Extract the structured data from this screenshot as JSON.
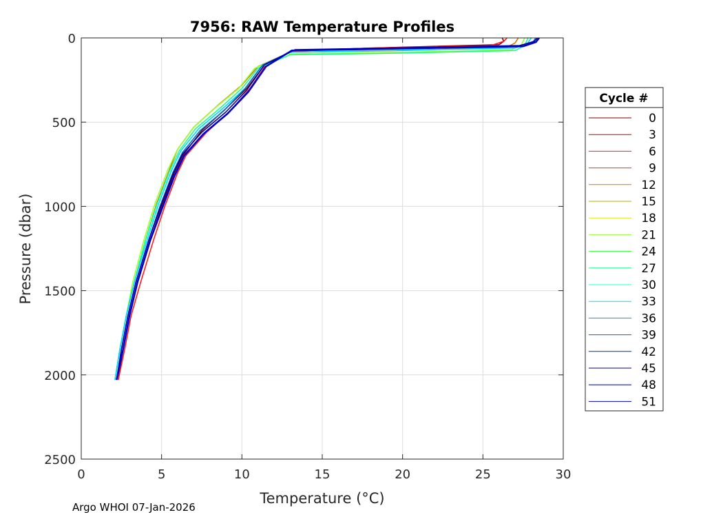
{
  "chart_data": {
    "type": "line",
    "title": "7956: RAW Temperature Profiles",
    "xlabel": "Temperature (°C)",
    "ylabel": "Pressure (dbar)",
    "xlim": [
      0,
      30
    ],
    "ylim": [
      0,
      2500
    ],
    "y_reversed": true,
    "grid": true,
    "xticks": [
      "0",
      "5",
      "10",
      "15",
      "20",
      "25",
      "30"
    ],
    "yticks": [
      "0",
      "500",
      "1000",
      "1500",
      "2000",
      "2500"
    ],
    "legend_title": "Cycle #",
    "legend_position": "right",
    "legend": [
      "0",
      "3",
      "6",
      "9",
      "12",
      "15",
      "18",
      "21",
      "24",
      "27",
      "30",
      "33",
      "36",
      "39",
      "42",
      "45",
      "48",
      "51"
    ],
    "legend_colors": [
      "#800000",
      "#cc0000",
      "#ff1a1a",
      "#e63900",
      "#cc7a00",
      "#b3b300",
      "#e6e600",
      "#99ff33",
      "#33ff33",
      "#1aff8c",
      "#1affcc",
      "#00d9ff",
      "#0099e6",
      "#0066cc",
      "#0033b3",
      "#000099",
      "#000080",
      "#0000cc"
    ],
    "series": [
      {
        "name": "0",
        "temperature": [
          26.2,
          26.3,
          26.0,
          20.0,
          13.2,
          11.5,
          10.3,
          9.0,
          7.5,
          6.3,
          5.8,
          5.0,
          4.3,
          3.5,
          3.0,
          2.6,
          2.3
        ],
        "pressure": [
          0,
          20,
          40,
          55,
          75,
          150,
          300,
          420,
          550,
          700,
          800,
          1000,
          1200,
          1450,
          1650,
          1850,
          2030
        ]
      },
      {
        "name": "6",
        "temperature": [
          26.5,
          26.3,
          25.5,
          18.0,
          13.0,
          11.5,
          10.5,
          9.3,
          7.8,
          6.5,
          6.0,
          5.2,
          4.5,
          3.7,
          3.1,
          2.7,
          2.3
        ],
        "pressure": [
          0,
          20,
          45,
          60,
          80,
          160,
          300,
          430,
          560,
          700,
          800,
          1000,
          1200,
          1450,
          1650,
          1850,
          2030
        ]
      },
      {
        "name": "12",
        "temperature": [
          27.2,
          27.0,
          26.5,
          20.0,
          13.0,
          11.0,
          10.0,
          8.5,
          7.0,
          6.0,
          5.5,
          4.7,
          4.0,
          3.3,
          2.8,
          2.4,
          2.1
        ],
        "pressure": [
          0,
          30,
          55,
          75,
          85,
          170,
          280,
          400,
          530,
          660,
          780,
          980,
          1200,
          1450,
          1650,
          1850,
          2030
        ]
      },
      {
        "name": "21",
        "temperature": [
          27.6,
          27.4,
          26.8,
          20.0,
          12.8,
          10.8,
          9.8,
          8.4,
          7.0,
          6.0,
          5.4,
          4.6,
          3.9,
          3.2,
          2.8,
          2.4,
          2.1
        ],
        "pressure": [
          0,
          40,
          70,
          85,
          95,
          180,
          300,
          410,
          530,
          660,
          780,
          980,
          1200,
          1450,
          1650,
          1850,
          2030
        ]
      },
      {
        "name": "27",
        "temperature": [
          27.8,
          27.6,
          27.0,
          20.0,
          13.0,
          11.0,
          10.0,
          8.6,
          7.1,
          6.1,
          5.5,
          4.7,
          4.0,
          3.3,
          2.8,
          2.4,
          2.1
        ],
        "pressure": [
          0,
          45,
          75,
          90,
          100,
          180,
          300,
          420,
          540,
          670,
          790,
          990,
          1200,
          1450,
          1650,
          1850,
          2030
        ]
      },
      {
        "name": "33",
        "temperature": [
          28.0,
          27.8,
          27.0,
          19.0,
          13.0,
          11.2,
          10.2,
          8.8,
          7.3,
          6.2,
          5.6,
          4.8,
          4.1,
          3.3,
          2.8,
          2.4,
          2.1
        ],
        "pressure": [
          0,
          30,
          60,
          75,
          85,
          170,
          300,
          420,
          540,
          670,
          790,
          990,
          1200,
          1450,
          1650,
          1850,
          2030
        ]
      },
      {
        "name": "39",
        "temperature": [
          28.3,
          28.1,
          27.2,
          19.0,
          13.2,
          11.3,
          10.2,
          8.9,
          7.4,
          6.3,
          5.7,
          4.9,
          4.2,
          3.4,
          2.9,
          2.5,
          2.2
        ],
        "pressure": [
          0,
          25,
          50,
          65,
          75,
          160,
          300,
          430,
          550,
          680,
          800,
          1000,
          1200,
          1450,
          1650,
          1850,
          2030
        ]
      },
      {
        "name": "45",
        "temperature": [
          28.4,
          28.2,
          27.3,
          19.0,
          13.3,
          11.4,
          10.3,
          9.0,
          7.5,
          6.3,
          5.7,
          4.9,
          4.2,
          3.4,
          2.9,
          2.5,
          2.2
        ],
        "pressure": [
          0,
          20,
          45,
          60,
          70,
          160,
          310,
          440,
          560,
          690,
          810,
          1010,
          1200,
          1450,
          1650,
          1850,
          2030
        ]
      },
      {
        "name": "51",
        "temperature": [
          28.5,
          28.3,
          27.5,
          19.0,
          13.1,
          11.5,
          10.4,
          9.1,
          7.6,
          6.4,
          5.8,
          5.0,
          4.3,
          3.5,
          3.0,
          2.6,
          2.2
        ],
        "pressure": [
          0,
          25,
          50,
          65,
          75,
          170,
          320,
          450,
          570,
          700,
          820,
          1020,
          1200,
          1450,
          1650,
          1850,
          2030
        ]
      }
    ]
  },
  "footer": "Argo WHOI 07-Jan-2026"
}
